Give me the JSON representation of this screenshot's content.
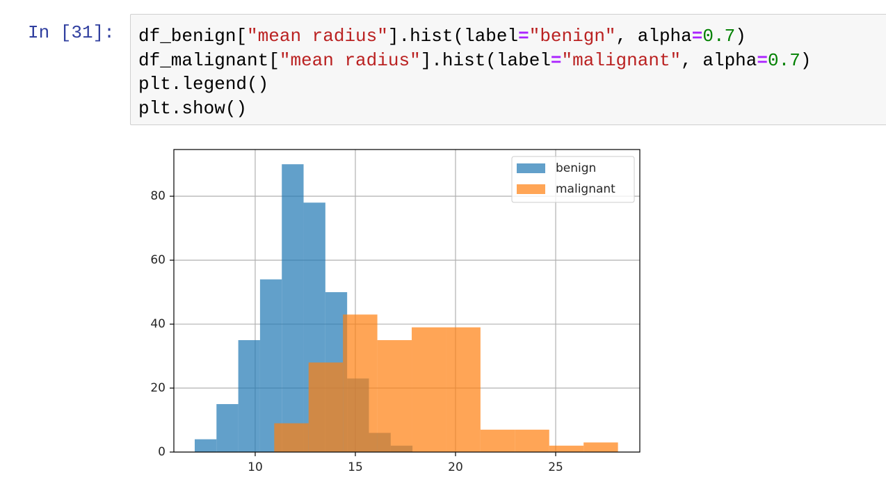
{
  "cell": {
    "prompt": "In [31]:",
    "code": [
      "df_benign[\"mean radius\"].hist(label=\"benign\", alpha=0.7)",
      "df_malignant[\"mean radius\"].hist(label=\"malignant\", alpha=0.7)",
      "plt.legend()",
      "plt.show()"
    ]
  },
  "chart_data": {
    "type": "histogram",
    "series": [
      {
        "name": "benign",
        "color": "#1f77b4",
        "opacity": 0.7,
        "bins": [
          6.981,
          8.068,
          9.155,
          10.242,
          11.329,
          12.416,
          13.503,
          14.59,
          15.677,
          16.764,
          17.851
        ],
        "values": [
          4,
          15,
          35,
          54,
          90,
          78,
          50,
          23,
          6,
          2
        ]
      },
      {
        "name": "malignant",
        "color": "#ff7f0e",
        "opacity": 0.7,
        "bins": [
          10.95,
          12.666,
          14.382,
          16.098,
          17.814,
          19.53,
          21.246,
          22.962,
          24.678,
          26.394,
          28.11
        ],
        "values": [
          9,
          28,
          43,
          35,
          39,
          39,
          7,
          7,
          2,
          3
        ]
      }
    ],
    "xlim": [
      5.94,
      29.2
    ],
    "ylim": [
      0,
      94.6
    ],
    "xticks": [
      10,
      15,
      20,
      25
    ],
    "yticks": [
      0,
      20,
      40,
      60,
      80
    ],
    "grid": true,
    "legend": "upper right"
  }
}
